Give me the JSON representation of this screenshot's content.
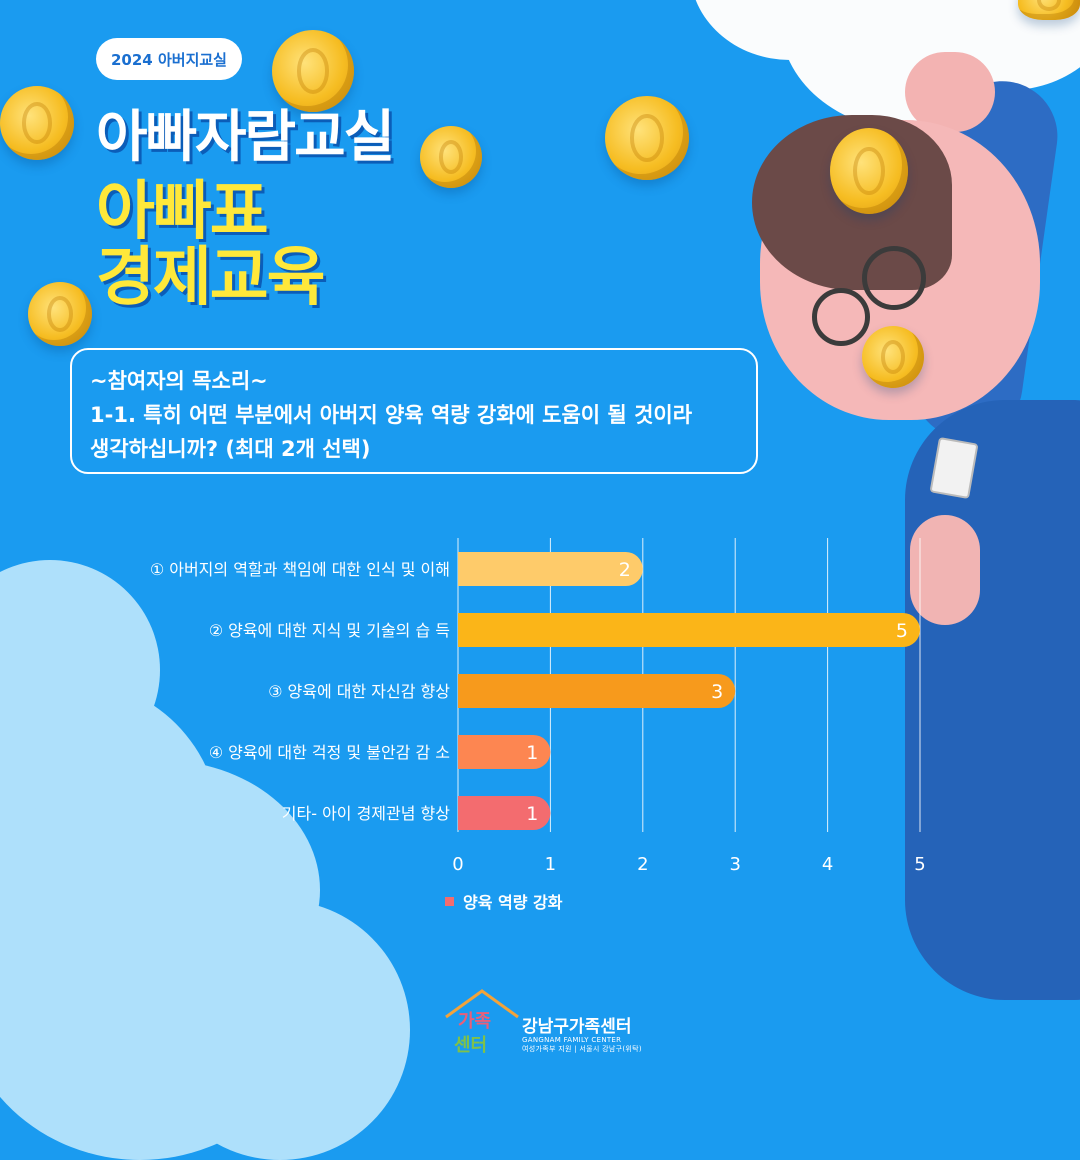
{
  "header": {
    "pill": "2024 아버지교실",
    "title_line1": "아빠자람교실",
    "title_line2": "아빠표",
    "title_line3": "경제교육"
  },
  "question": {
    "line1": "~참여자의 목소리~",
    "line2": "1-1. 특히 어떤 부분에서 아버지 양육 역량 강화에 도움이 될 것이라",
    "line3": "생각하십니까? (최대 2개 선택)"
  },
  "chart_data": {
    "type": "bar",
    "orientation": "horizontal",
    "categories": [
      "① 아버지의 역할과 책임에 대한 인식 및 이해",
      "② 양육에 대한 지식 및 기술의 습 득",
      "③ 양육에 대한 자신감 향상",
      "④ 양육에 대한 걱정 및 불안감 감 소",
      "기타- 아이 경제관념 향상"
    ],
    "values": [
      2,
      5,
      3,
      1,
      1
    ],
    "bar_colors": [
      "#fecb6a",
      "#fbb518",
      "#f79a1c",
      "#fd8651",
      "#f36c6f"
    ],
    "xlim": [
      0,
      5
    ],
    "xticks": [
      "0",
      "1",
      "2",
      "3",
      "4",
      "5"
    ],
    "grid": true,
    "legend": {
      "label": "양육 역량 강화",
      "color": "#f36c6f",
      "position": "bottom-center"
    }
  },
  "footer": {
    "logo_mark_top": "가족",
    "logo_mark_bottom": "센터",
    "org_name": "강남구가족센터",
    "org_en": "GANGNAM FAMILY CENTER",
    "org_sub": "여성가족부 지원 | 서울시 강남구(위탁)"
  }
}
